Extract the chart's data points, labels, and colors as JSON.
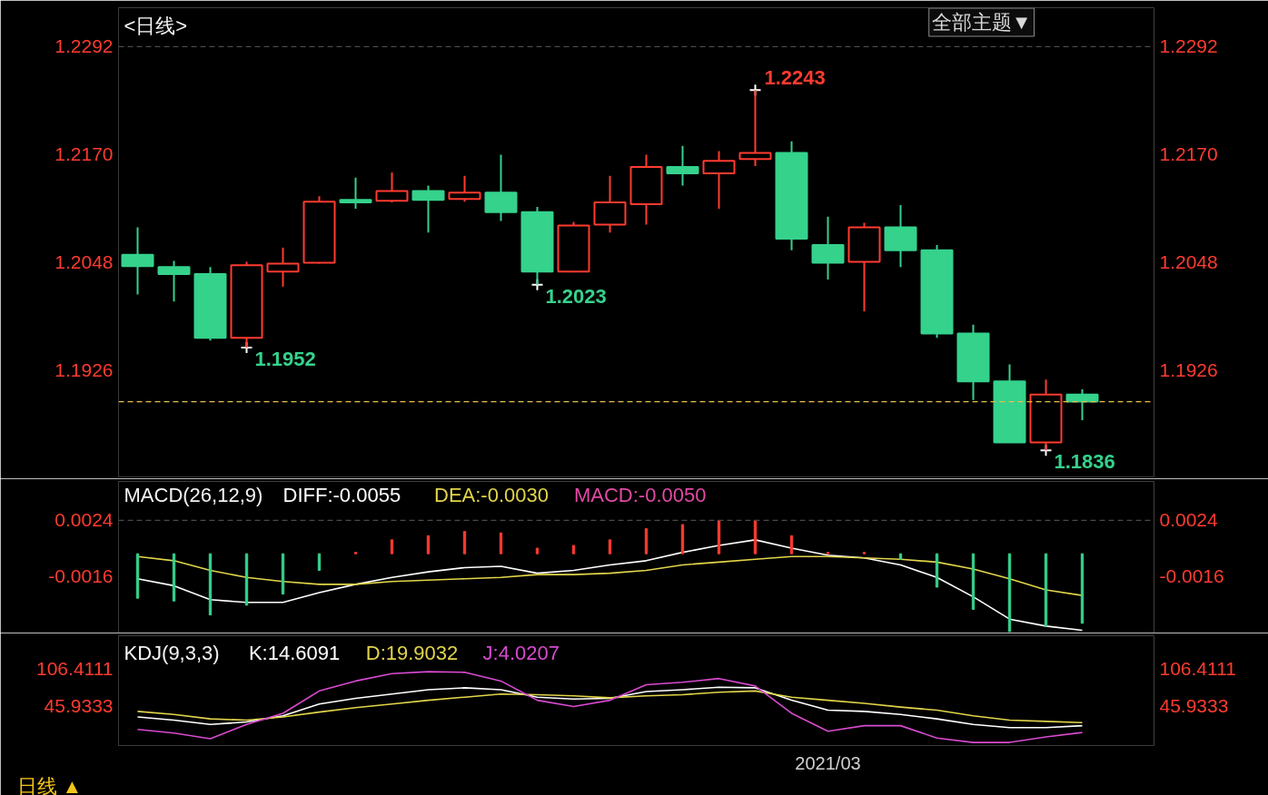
{
  "chart_data": [
    {
      "type": "candlestick",
      "title": "<日线>",
      "categories": [
        null,
        null,
        null,
        null,
        null,
        null,
        null,
        null,
        null,
        null,
        null,
        null,
        null,
        null,
        null,
        null,
        null,
        null,
        null,
        null,
        null,
        null,
        null,
        null,
        null,
        null,
        null
      ],
      "ohlc": [
        [
          1.2057,
          1.2088,
          1.2012,
          1.2044
        ],
        [
          1.2043,
          1.205,
          1.2004,
          1.2035
        ],
        [
          1.2035,
          1.2043,
          1.196,
          1.1963
        ],
        [
          1.1963,
          1.2049,
          1.1952,
          1.2045
        ],
        [
          1.2038,
          1.2065,
          1.2021,
          1.2047
        ],
        [
          1.2048,
          1.2123,
          1.2047,
          1.2117
        ],
        [
          1.2119,
          1.2144,
          1.2109,
          1.2116
        ],
        [
          1.2118,
          1.215,
          1.2116,
          1.2129
        ],
        [
          1.2129,
          1.2135,
          1.2082,
          1.2119
        ],
        [
          1.212,
          1.2146,
          1.2117,
          1.2127
        ],
        [
          1.2127,
          1.217,
          1.2095,
          1.2105
        ],
        [
          1.2105,
          1.2111,
          1.2023,
          1.2038
        ],
        [
          1.2038,
          1.2094,
          1.2037,
          1.209
        ],
        [
          1.2091,
          1.2146,
          1.2082,
          1.2116
        ],
        [
          1.2114,
          1.217,
          1.2091,
          1.2156
        ],
        [
          1.2156,
          1.218,
          1.2135,
          1.2149
        ],
        [
          1.2149,
          1.2174,
          1.2109,
          1.2163
        ],
        [
          1.2165,
          1.2243,
          1.2157,
          1.2172
        ],
        [
          1.2172,
          1.2185,
          1.2062,
          1.2075
        ],
        [
          1.2068,
          1.21,
          1.2029,
          1.2048
        ],
        [
          1.2049,
          1.2093,
          1.1993,
          1.2088
        ],
        [
          1.2088,
          1.2113,
          1.2043,
          1.2062
        ],
        [
          1.2062,
          1.2068,
          1.1963,
          1.1968
        ],
        [
          1.1968,
          1.1978,
          1.1893,
          1.1914
        ],
        [
          1.1914,
          1.1933,
          1.1845,
          1.1845
        ],
        [
          1.1845,
          1.1916,
          1.1836,
          1.1899
        ],
        [
          1.1899,
          1.1905,
          1.187,
          1.1891
        ]
      ],
      "colors": [
        "#35d28c",
        "#35d28c",
        "#35d28c",
        "#ff3b30",
        "#ff3b30",
        "#ff3b30",
        "#35d28c",
        "#ff3b30",
        "#35d28c",
        "#ff3b30",
        "#35d28c",
        "#35d28c",
        "#ff3b30",
        "#ff3b30",
        "#ff3b30",
        "#35d28c",
        "#ff3b30",
        "#ff3b30",
        "#35d28c",
        "#35d28c",
        "#ff3b30",
        "#35d28c",
        "#35d28c",
        "#35d28c",
        "#35d28c",
        "#ff3b30",
        "#35d28c"
      ],
      "ylim": [
        1.1806,
        1.2336
      ],
      "yticks": [
        1.2292,
        {
          "value": 1.217,
          "label": "1.2170"
        },
        1.2048,
        1.1926
      ],
      "y2lim": [
        1.1806,
        1.2336
      ],
      "y2ticks": [
        1.2292,
        {
          "value": 1.217,
          "label": "1.2170"
        },
        1.2048,
        1.1926
      ],
      "tick_labels": "y",
      "ref_lines": [
        {
          "axis": "y",
          "value": 1.2292,
          "color": "#4a4a4a",
          "line_style": "dashed"
        },
        {
          "axis": "y",
          "value": 1.1891,
          "color": "#e8c04a",
          "line_style": "dashed"
        }
      ],
      "annotations": [
        "1.2243",
        "1.1952",
        "1.2023",
        "1.1836",
        "全部主题▼"
      ]
    },
    {
      "type": "line",
      "title": "MACD(26,12,9)",
      "categories": [
        null,
        null,
        null,
        null,
        null,
        null,
        null,
        null,
        null,
        null,
        null,
        null,
        null,
        null,
        null,
        null,
        null,
        null,
        null,
        null,
        null,
        null,
        null,
        null,
        null,
        null,
        null
      ],
      "series": [
        {
          "name": "DIFF:-0.0055",
          "color": "#ffffff",
          "values": [
            -0.0018,
            -0.0023,
            -0.0033,
            -0.0035,
            -0.0035,
            -0.0028,
            -0.0022,
            -0.0017,
            -0.0013,
            -0.001,
            -0.0009,
            -0.0014,
            -0.0012,
            -0.0008,
            -0.0005,
            0.0001,
            0.0006,
            0.001,
            0.0004,
            -0.0001,
            -0.0003,
            -0.0008,
            -0.0017,
            -0.0031,
            -0.0047,
            -0.0052,
            -0.0055
          ]
        },
        {
          "name": "DEA:-0.0030",
          "color": "#e2d54a",
          "values": [
            -0.0002,
            -0.0005,
            -0.0012,
            -0.0017,
            -0.002,
            -0.0022,
            -0.0022,
            -0.002,
            -0.0019,
            -0.0018,
            -0.0017,
            -0.0015,
            -0.0015,
            -0.0014,
            -0.0012,
            -0.0008,
            -0.0006,
            -0.0004,
            -0.0002,
            -0.0002,
            -0.0003,
            -0.0004,
            -0.0006,
            -0.0011,
            -0.0018,
            -0.0026,
            -0.003
          ]
        },
        {
          "name": "MACD:-0.0050",
          "type": "bar",
          "color": "#e24aa6",
          "colors": [
            "#35d28c",
            "#35d28c",
            "#35d28c",
            "#35d28c",
            "#35d28c",
            "#35d28c",
            "#ff3b30",
            "#ff3b30",
            "#ff3b30",
            "#ff3b30",
            "#ff3b30",
            "#ff3b30",
            "#ff3b30",
            "#ff3b30",
            "#ff3b30",
            "#ff3b30",
            "#ff3b30",
            "#ff3b30",
            "#ff3b30",
            "#ff3b30",
            "#ff3b30",
            "#35d28c",
            "#35d28c",
            "#35d28c",
            "#35d28c",
            "#35d28c",
            "#35d28c"
          ],
          "values": [
            -0.0032,
            -0.0034,
            -0.0044,
            -0.0037,
            -0.0029,
            -0.0012,
            0.0001,
            0.001,
            0.0013,
            0.0016,
            0.0015,
            0.0004,
            0.0006,
            0.001,
            0.0018,
            0.0021,
            0.0024,
            0.0024,
            0.0013,
            0.0001,
            0.0001,
            -0.0004,
            -0.0024,
            -0.004,
            -0.0056,
            -0.0052,
            -0.005
          ]
        }
      ],
      "ylim": [
        -0.0057,
        0.0052
      ],
      "yticks": [
        0.0024,
        -0.0016
      ],
      "y2lim": [
        -0.0057,
        0.0052
      ],
      "y2ticks": [
        0.0024,
        -0.0016
      ],
      "tick_labels": "y",
      "legend": "top left",
      "ref_lines": [
        {
          "axis": "y",
          "value": 0.0024,
          "color": "#4a4a4a",
          "line_style": "dashed"
        }
      ]
    },
    {
      "type": "line",
      "title": "KDJ(9,3,3)",
      "categories": [
        null,
        null,
        null,
        null,
        null,
        null,
        null,
        null,
        null,
        null,
        null,
        null,
        null,
        null,
        null,
        null,
        null,
        null,
        null,
        "2021/03",
        null,
        null,
        null,
        null,
        null,
        null,
        null
      ],
      "series": [
        {
          "name": "K:14.6091",
          "color": "#ffffff",
          "values": [
            29,
            24,
            17,
            21,
            31,
            50,
            59,
            66,
            73,
            76,
            73,
            61,
            58,
            59,
            70,
            73,
            77,
            76,
            56,
            40,
            38,
            33,
            26,
            17,
            12,
            12,
            15
          ]
        },
        {
          "name": "D:19.9032",
          "color": "#e2d54a",
          "values": [
            38,
            33,
            26,
            24,
            29,
            37,
            44,
            50,
            56,
            61,
            66,
            65,
            63,
            60,
            63,
            65,
            69,
            71,
            61,
            56,
            51,
            45,
            40,
            31,
            24,
            22,
            20
          ]
        },
        {
          "name": "J:4.0207",
          "color": "#d94ad0",
          "values": [
            9,
            3,
            -6,
            17,
            35,
            71,
            87,
            99,
            102,
            101,
            87,
            56,
            46,
            56,
            81,
            85,
            91,
            79,
            35,
            6,
            15,
            15,
            -5,
            -12,
            -12,
            -3,
            4
          ]
        }
      ],
      "ylim": [
        -17,
        160
      ],
      "yticks": [
        106.4111,
        45.9333
      ],
      "y2lim": [
        -17,
        160
      ],
      "y2ticks": [
        106.4111,
        45.9333
      ],
      "legend": "top left",
      "annotations": [
        "日线 ▲"
      ]
    }
  ]
}
